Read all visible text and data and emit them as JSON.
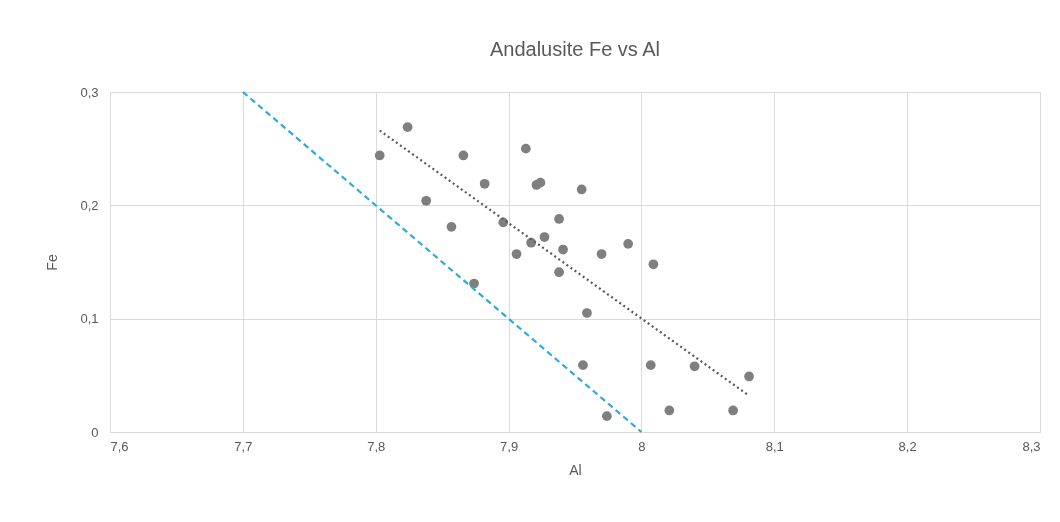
{
  "chart_data": {
    "type": "scatter",
    "title": "Andalusite Fe vs Al",
    "xlabel": "Al",
    "ylabel": "Fe",
    "xlim": [
      7.6,
      8.3
    ],
    "ylim": [
      0,
      0.3
    ],
    "xticks": [
      {
        "value": 7.6,
        "label": "7,6"
      },
      {
        "value": 7.7,
        "label": "7,7"
      },
      {
        "value": 7.8,
        "label": "7,8"
      },
      {
        "value": 7.9,
        "label": "7,9"
      },
      {
        "value": 8,
        "label": "8"
      },
      {
        "value": 8.1,
        "label": "8,1"
      },
      {
        "value": 8.2,
        "label": "8,2"
      },
      {
        "value": 8.3,
        "label": "8,3"
      }
    ],
    "yticks": [
      {
        "value": 0,
        "label": "0"
      },
      {
        "value": 0.1,
        "label": "0,1"
      },
      {
        "value": 0.2,
        "label": "0,2"
      },
      {
        "value": 0.3,
        "label": "0,3"
      }
    ],
    "grid": true,
    "series": [
      {
        "marker": "circle",
        "color": "#7f7f7f",
        "x": [
          7.803,
          7.824,
          7.838,
          7.857,
          7.866,
          7.874,
          7.882,
          7.896,
          7.906,
          7.913,
          7.917,
          7.921,
          7.924,
          7.927,
          7.938,
          7.938,
          7.941,
          7.955,
          7.956,
          7.959,
          7.97,
          7.974,
          7.99,
          8.007,
          8.009,
          8.021,
          8.04,
          8.069,
          8.081
        ],
        "values": [
          0.244,
          0.269,
          0.204,
          0.181,
          0.244,
          0.131,
          0.219,
          0.185,
          0.157,
          0.25,
          0.167,
          0.218,
          0.22,
          0.172,
          0.188,
          0.141,
          0.161,
          0.214,
          0.059,
          0.105,
          0.157,
          0.014,
          0.166,
          0.059,
          0.148,
          0.019,
          0.058,
          0.019,
          0.049
        ]
      },
      {
        "type": "line",
        "marker": "none",
        "color": "#595959",
        "line_style": "dotted",
        "x": [
          7.803,
          8.081
        ],
        "values": [
          0.266,
          0.032
        ]
      },
      {
        "type": "line",
        "marker": "none",
        "color": "#2eaadc",
        "line_style": "dashed",
        "x": [
          7.7,
          8.0
        ],
        "values": [
          0.3,
          0
        ]
      }
    ]
  }
}
